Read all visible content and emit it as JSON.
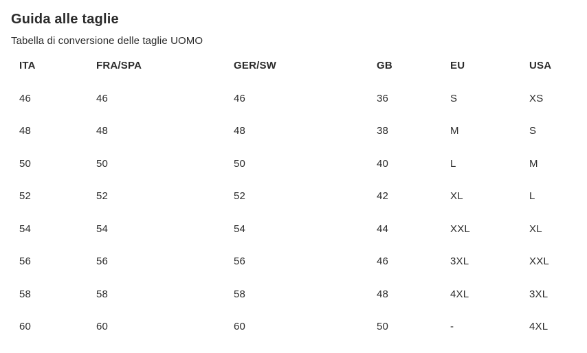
{
  "page": {
    "title": "Guida alle taglie",
    "subtitle": "Tabella di conversione delle taglie UOMO"
  },
  "table": {
    "columns": [
      "ITA",
      "FRA/SPA",
      "GER/SW",
      "GB",
      "EU",
      "USA"
    ],
    "rows": [
      [
        "46",
        "46",
        "46",
        "36",
        "S",
        "XS"
      ],
      [
        "48",
        "48",
        "48",
        "38",
        "M",
        "S"
      ],
      [
        "50",
        "50",
        "50",
        "40",
        "L",
        "M"
      ],
      [
        "52",
        "52",
        "52",
        "42",
        "XL",
        "L"
      ],
      [
        "54",
        "54",
        "54",
        "44",
        "XXL",
        "XL"
      ],
      [
        "56",
        "56",
        "56",
        "46",
        "3XL",
        "XXL"
      ],
      [
        "58",
        "58",
        "58",
        "48",
        "4XL",
        "3XL"
      ],
      [
        "60",
        "60",
        "60",
        "50",
        "-",
        "4XL"
      ]
    ]
  },
  "colors": {
    "text": "#2b2b2b",
    "background": "#ffffff"
  }
}
